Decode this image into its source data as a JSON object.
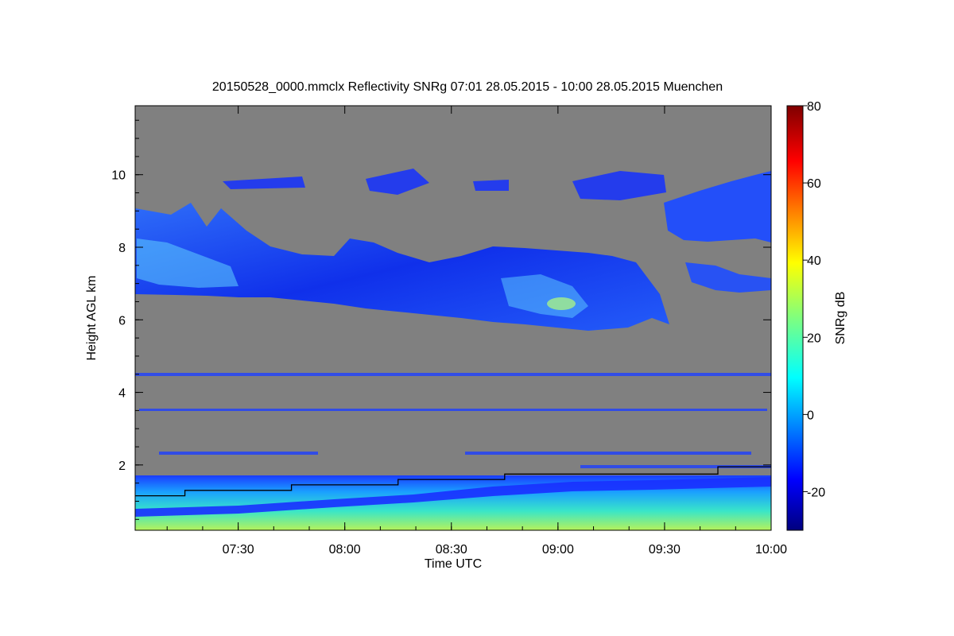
{
  "chart_data": {
    "type": "heatmap",
    "title": "20150528_0000.mmclx Reflectivity SNRg   07:01 28.05.2015 - 10:00 28.05.2015 Muenchen",
    "xlabel": "Time UTC",
    "ylabel": "Height AGL km",
    "xlim": [
      "07:01",
      "10:00"
    ],
    "ylim": [
      0.2,
      11.9
    ],
    "x_ticks": [
      "07:30",
      "08:00",
      "08:30",
      "09:00",
      "09:30",
      "10:00"
    ],
    "y_ticks": [
      2,
      4,
      6,
      8,
      10
    ],
    "background_color": "#808080",
    "colorbar": {
      "label": "SNRg dB",
      "range": [
        -30,
        80
      ],
      "ticks": [
        -20,
        0,
        20,
        40,
        60,
        80
      ],
      "colormap": "jet"
    },
    "cloud_layers": [
      {
        "name": "upper",
        "time_start": "07:01",
        "time_end": "09:32",
        "top_km": [
          9.0,
          8.8,
          8.3,
          7.9,
          7.7,
          7.5,
          8.1,
          7.9,
          7.4,
          6.2
        ],
        "base_km": [
          6.8,
          6.8,
          6.8,
          6.6,
          6.4,
          6.2,
          6.0,
          5.8,
          5.9,
          6.2
        ]
      },
      {
        "name": "cirrus-east",
        "time_start": "09:25",
        "time_end": "10:00",
        "top_km": [
          9.5,
          9.8,
          10.1
        ],
        "base_km": [
          8.4,
          8.3,
          8.1
        ]
      }
    ],
    "boundary_layer_line": {
      "times": [
        "07:01",
        "07:15",
        "07:15",
        "07:45",
        "07:45",
        "08:15",
        "08:15",
        "08:45",
        "08:45",
        "09:45",
        "09:45",
        "10:00"
      ],
      "heights_km": [
        1.15,
        1.15,
        1.3,
        1.3,
        1.45,
        1.45,
        1.6,
        1.6,
        1.75,
        1.75,
        1.95,
        1.95
      ]
    }
  }
}
